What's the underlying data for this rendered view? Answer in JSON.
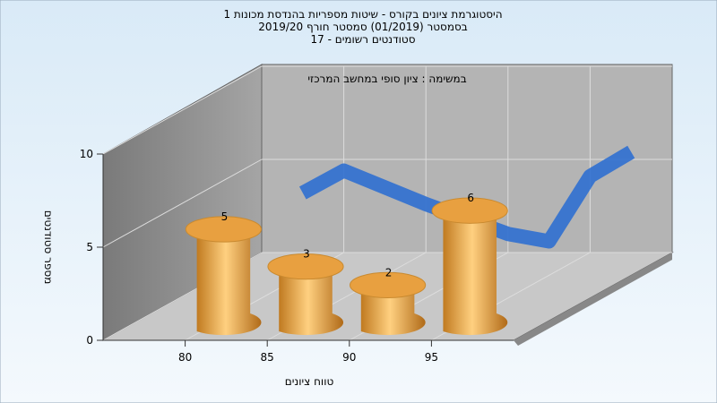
{
  "chart_data": {
    "type": "histogram",
    "title": "היסטוגרמת ציונים בקורס - שיטות מספריות בהנדסת מכונות 1",
    "subtitle": [
      "בסמסטר  (01/2019)  סמסטר חורף 2019/20",
      "סטודנטים רשומים - 17"
    ],
    "annotation": "במשימה : ציון סופי במחשב המרכזי",
    "xlabel": "טווח ציונים",
    "ylabel": "מספר סטודנטים",
    "bins": [
      80,
      85,
      90,
      95,
      100
    ],
    "values": [
      5,
      3,
      2,
      6
    ],
    "xlim": [
      75,
      100
    ],
    "xticks": [
      80,
      85,
      90,
      95
    ],
    "ylim": [
      0,
      10
    ],
    "yticks": [
      0,
      5,
      10
    ],
    "color": "#e8a040",
    "trend": {
      "color": "#2f6fd0",
      "x": [
        77.5,
        80,
        85,
        90,
        92.5,
        95,
        97.5
      ],
      "values": [
        3.2,
        4.4,
        2.6,
        1.0,
        0.6,
        4.1,
        5.4
      ]
    },
    "grid": true
  }
}
